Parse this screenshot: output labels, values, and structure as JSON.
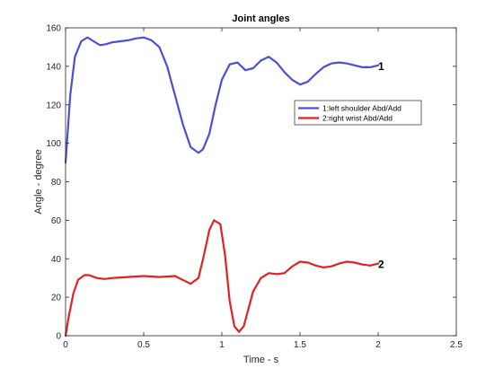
{
  "chart_data": {
    "type": "line",
    "title": "Joint angles",
    "xlabel": "Time - s",
    "ylabel": "Angle - degree",
    "xlim": [
      0,
      2.5
    ],
    "ylim": [
      0,
      160
    ],
    "xticks": [
      "0",
      "0.5",
      "1",
      "1.5",
      "2",
      "2.5"
    ],
    "yticks": [
      "0",
      "20",
      "40",
      "60",
      "80",
      "100",
      "120",
      "140",
      "160"
    ],
    "grid": false,
    "legend_position": "right",
    "series": [
      {
        "name": "1:left shoulder  Abd/Add",
        "color": "#4a4fd6",
        "label": "1",
        "x": [
          0,
          0.03,
          0.06,
          0.1,
          0.14,
          0.18,
          0.22,
          0.26,
          0.3,
          0.35,
          0.4,
          0.45,
          0.5,
          0.55,
          0.6,
          0.65,
          0.7,
          0.75,
          0.8,
          0.85,
          0.88,
          0.92,
          0.96,
          1.0,
          1.05,
          1.1,
          1.15,
          1.2,
          1.25,
          1.3,
          1.35,
          1.4,
          1.45,
          1.5,
          1.55,
          1.6,
          1.65,
          1.7,
          1.75,
          1.8,
          1.85,
          1.9,
          1.95,
          2.0
        ],
        "y": [
          90,
          125,
          145,
          153,
          155,
          153,
          151,
          151.5,
          152.5,
          153,
          153.5,
          154.5,
          155,
          153.5,
          150,
          140,
          125,
          110,
          98,
          95,
          97,
          105,
          120,
          133,
          141,
          142,
          138,
          139,
          143,
          145,
          142,
          137,
          133,
          130.5,
          132,
          136,
          139.5,
          141.5,
          142,
          141.5,
          140.5,
          139.5,
          139.5,
          140.5
        ]
      },
      {
        "name": "2:right wrist  Abd/Add",
        "color": "#e02222",
        "label": "2",
        "x": [
          0,
          0.02,
          0.05,
          0.08,
          0.12,
          0.15,
          0.2,
          0.25,
          0.3,
          0.4,
          0.5,
          0.6,
          0.7,
          0.75,
          0.8,
          0.85,
          0.88,
          0.92,
          0.95,
          0.99,
          1.02,
          1.05,
          1.08,
          1.11,
          1.14,
          1.17,
          1.2,
          1.25,
          1.3,
          1.35,
          1.4,
          1.45,
          1.5,
          1.55,
          1.6,
          1.65,
          1.7,
          1.75,
          1.8,
          1.85,
          1.9,
          1.95,
          2.0
        ],
        "y": [
          0,
          10,
          22,
          29,
          31.5,
          31.5,
          30,
          29.5,
          30,
          30.5,
          31,
          30.5,
          31,
          29,
          27,
          30,
          40,
          55,
          60,
          58,
          42,
          18,
          5,
          2,
          5,
          14,
          23,
          30,
          32.5,
          32,
          32.5,
          36,
          38.5,
          38,
          36.5,
          35.5,
          36,
          37.5,
          38.5,
          38,
          37,
          36.5,
          37.5
        ]
      }
    ]
  }
}
